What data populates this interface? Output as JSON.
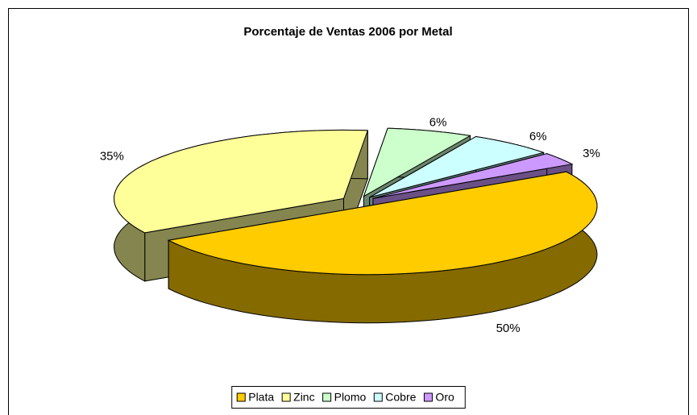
{
  "chart_data": {
    "type": "pie",
    "title": "Porcentaje de Ventas 2006 por Metal",
    "categories": [
      "Plata",
      "Zinc",
      "Plomo",
      "Cobre",
      "Oro"
    ],
    "values": [
      50,
      35,
      6,
      6,
      3
    ],
    "value_labels": [
      "50%",
      "35%",
      "6%",
      "6%",
      "3%"
    ],
    "colors": [
      "#ffcc00",
      "#ffff99",
      "#ccffcc",
      "#ccffff",
      "#cc99ff"
    ],
    "legend": "bottom"
  }
}
